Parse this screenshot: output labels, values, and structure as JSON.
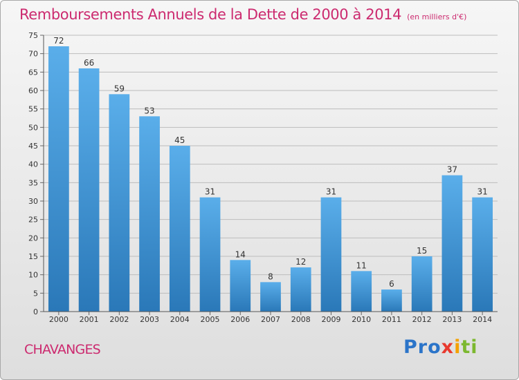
{
  "title": "Remboursements Annuels de la Dette de 2000 à 2014",
  "subtitle": "(en milliers d'€)",
  "commune": "CHAVANGES",
  "logo": {
    "p1": "Pro",
    "p2": "x",
    "p3": "i",
    "p4": "ti"
  },
  "colors": {
    "title": "#cc2a6f",
    "bar_top": "#5aaeea",
    "bar_bottom": "#2a78b8"
  },
  "chart_data": {
    "type": "bar",
    "categories": [
      "2000",
      "2001",
      "2002",
      "2003",
      "2004",
      "2005",
      "2006",
      "2007",
      "2008",
      "2009",
      "2010",
      "2011",
      "2012",
      "2013",
      "2014"
    ],
    "values": [
      72,
      66,
      59,
      53,
      45,
      31,
      14,
      8,
      12,
      31,
      11,
      6,
      15,
      37,
      31
    ],
    "ylim": [
      0,
      75
    ],
    "yticks": [
      0,
      5,
      10,
      15,
      20,
      25,
      30,
      35,
      40,
      45,
      50,
      55,
      60,
      65,
      70,
      75
    ],
    "grid": true,
    "data_labels": true
  }
}
